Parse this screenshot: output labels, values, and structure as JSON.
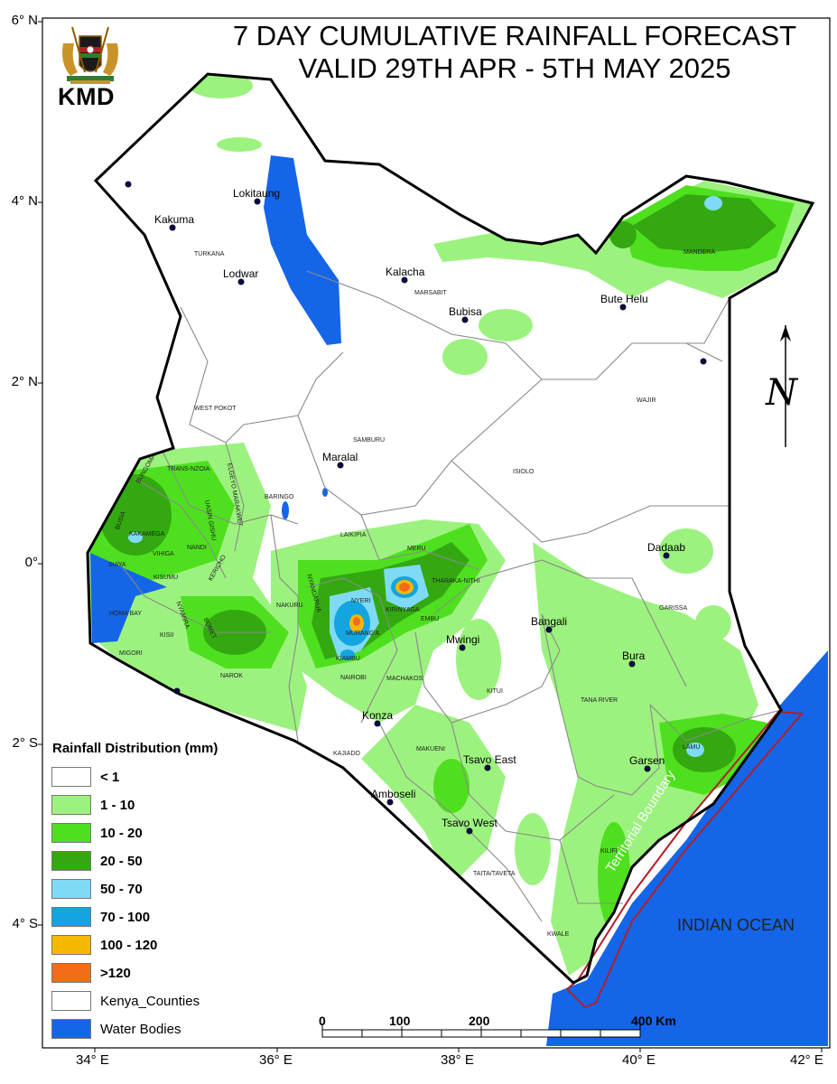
{
  "title": {
    "line1": "7 DAY CUMULATIVE RAINFALL FORECAST",
    "line2": "VALID 29TH APR - 5TH MAY  2025"
  },
  "logo": {
    "name": "KMD"
  },
  "axes": {
    "lat_labels": [
      "6° N",
      "4° N",
      "2° N",
      "0°",
      "2° S",
      "4° S"
    ],
    "lon_labels": [
      "34° E",
      "36° E",
      "38° E",
      "40° E",
      "42° E"
    ]
  },
  "legend": {
    "title": "Rainfall Distribution (mm)",
    "items": [
      {
        "label": "< 1",
        "color": "#ffffff",
        "bold": true
      },
      {
        "label": "1 - 10",
        "color": "#9cf27e",
        "bold": true
      },
      {
        "label": "10 - 20",
        "color": "#4ee01e",
        "bold": true
      },
      {
        "label": "20 - 50",
        "color": "#34a811",
        "bold": true
      },
      {
        "label": "50 - 70",
        "color": "#7fdbf5",
        "bold": true
      },
      {
        "label": "70 - 100",
        "color": "#14a4e0",
        "bold": true
      },
      {
        "label": "100 - 120",
        "color": "#f5b800",
        "bold": true
      },
      {
        "label": ">120",
        "color": "#f26c19",
        "bold": true
      },
      {
        "label": "Kenya_Counties",
        "color": "#ffffff",
        "bold": false
      },
      {
        "label": "Water Bodies",
        "color": "#1565e8",
        "bold": false
      }
    ]
  },
  "towns": [
    {
      "name": "Lokitaung"
    },
    {
      "name": "Kakuma"
    },
    {
      "name": "Lodwar"
    },
    {
      "name": "Kalacha"
    },
    {
      "name": "Bubisa"
    },
    {
      "name": "Bute Helu"
    },
    {
      "name": "Maralal"
    },
    {
      "name": "Dadaab"
    },
    {
      "name": "Bangali"
    },
    {
      "name": "Mwingi"
    },
    {
      "name": "Bura"
    },
    {
      "name": "Konza"
    },
    {
      "name": "Tsavo East"
    },
    {
      "name": "Garsen"
    },
    {
      "name": "Amboseli"
    },
    {
      "name": "Tsavo West"
    }
  ],
  "counties": [
    "TURKANA",
    "MARSABIT",
    "MANDERA",
    "WAJIR",
    "WEST POKOT",
    "SAMBURU",
    "ISIOLO",
    "TRANS-NZOIA",
    "ELGEYO MARAKWET",
    "UASIN GISHU",
    "BUNGOMA",
    "BUSIA",
    "KAKAMEGA",
    "VIHIGA",
    "SIAYA",
    "NANDI",
    "KISUMU",
    "BARINGO",
    "LAIKIPIA",
    "MERU",
    "THARAKA-NITHI",
    "NYANDARUA",
    "NYERI",
    "KIRINYAGA",
    "EMBU",
    "NAKURU",
    "KERICHO",
    "HOMA BAY",
    "NYAMIRA",
    "KISII",
    "BOMET",
    "MIGORI",
    "NAROK",
    "MURANG'A",
    "KIAMBU",
    "NAIROBI",
    "MACHAKOS",
    "KITUI",
    "GARISSA",
    "TANA RIVER",
    "KAJIADO",
    "MAKUENI",
    "LAMU",
    "KILIFI",
    "TAITA/TAVETA",
    "KWALE"
  ],
  "ocean": "INDIAN OCEAN",
  "boundary_label": "Territorial Boundary",
  "scale": {
    "labels": [
      "0",
      "100",
      "200",
      "400 Km"
    ]
  },
  "north_arrow": {
    "letter": "N"
  },
  "colors": {
    "water": "#1565e8",
    "border": "#000000",
    "county_lines": "#8a8a8a",
    "territorial": "#b0202a"
  }
}
